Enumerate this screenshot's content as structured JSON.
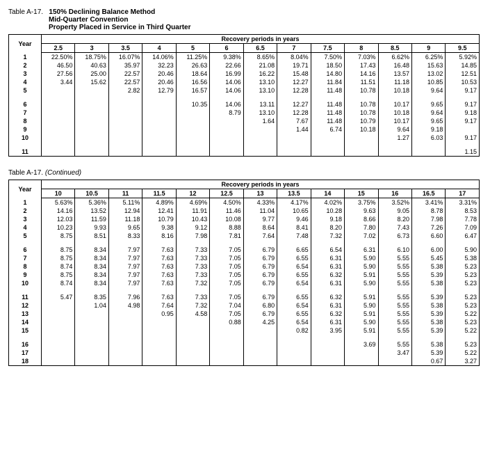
{
  "table1": {
    "label_left": "Table A-17.",
    "title_line1": "150% Declining Balance Method",
    "title_line2": "Mid-Quarter Convention",
    "title_line3": "Property Placed in Service in Third Quarter",
    "year_label": "Year",
    "recovery_title": "Recovery periods in years",
    "columns": [
      "2.5",
      "3",
      "3.5",
      "4",
      "5",
      "6",
      "6.5",
      "7",
      "7.5",
      "8",
      "8.5",
      "9",
      "9.5"
    ],
    "col_count": 13,
    "groups": [
      {
        "rows": [
          {
            "year": "1",
            "cells": [
              "22.50%",
              "18.75%",
              "16.07%",
              "14.06%",
              "11.25%",
              "9.38%",
              "8.65%",
              "8.04%",
              "7.50%",
              "7.03%",
              "6.62%",
              "6.25%",
              "5.92%"
            ]
          },
          {
            "year": "2",
            "cells": [
              "46.50",
              "40.63",
              "35.97",
              "32.23",
              "26.63",
              "22.66",
              "21.08",
              "19.71",
              "18.50",
              "17.43",
              "16.48",
              "15.63",
              "14.85"
            ]
          },
          {
            "year": "3",
            "cells": [
              "27.56",
              "25.00",
              "22.57",
              "20.46",
              "18.64",
              "16.99",
              "16.22",
              "15.48",
              "14.80",
              "14.16",
              "13.57",
              "13.02",
              "12.51"
            ]
          },
          {
            "year": "4",
            "cells": [
              "3.44",
              "15.62",
              "22.57",
              "20.46",
              "16.56",
              "14.06",
              "13.10",
              "12.27",
              "11.84",
              "11.51",
              "11.18",
              "10.85",
              "10.53"
            ]
          },
          {
            "year": "5",
            "cells": [
              "",
              "",
              "2.82",
              "12.79",
              "16.57",
              "14.06",
              "13.10",
              "12.28",
              "11.48",
              "10.78",
              "10.18",
              "9.64",
              "9.17"
            ]
          }
        ]
      },
      {
        "rows": [
          {
            "year": "6",
            "cells": [
              "",
              "",
              "",
              "",
              "10.35",
              "14.06",
              "13.11",
              "12.27",
              "11.48",
              "10.78",
              "10.17",
              "9.65",
              "9.17"
            ]
          },
          {
            "year": "7",
            "cells": [
              "",
              "",
              "",
              "",
              "",
              "8.79",
              "13.10",
              "12.28",
              "11.48",
              "10.78",
              "10.18",
              "9.64",
              "9.18"
            ]
          },
          {
            "year": "8",
            "cells": [
              "",
              "",
              "",
              "",
              "",
              "",
              "1.64",
              "7.67",
              "11.48",
              "10.79",
              "10.17",
              "9.65",
              "9.17"
            ]
          },
          {
            "year": "9",
            "cells": [
              "",
              "",
              "",
              "",
              "",
              "",
              "",
              "1.44",
              "6.74",
              "10.18",
              "9.64",
              "9.18",
              ""
            ]
          },
          {
            "year": "10",
            "cells": [
              "",
              "",
              "",
              "",
              "",
              "",
              "",
              "",
              "",
              "",
              "1.27",
              "6.03",
              "9.17"
            ]
          }
        ]
      },
      {
        "rows": [
          {
            "year": "11",
            "cells": [
              "",
              "",
              "",
              "",
              "",
              "",
              "",
              "",
              "",
              "",
              "",
              "",
              "1.15"
            ]
          }
        ]
      }
    ]
  },
  "table2": {
    "label_left": "Table A-17.",
    "label_right": "(Continued)",
    "year_label": "Year",
    "recovery_title": "Recovery periods in years",
    "columns": [
      "10",
      "10.5",
      "11",
      "11.5",
      "12",
      "12.5",
      "13",
      "13.5",
      "14",
      "15",
      "16",
      "16.5",
      "17"
    ],
    "col_count": 13,
    "groups": [
      {
        "rows": [
          {
            "year": "1",
            "cells": [
              "5.63%",
              "5.36%",
              "5.11%",
              "4.89%",
              "4.69%",
              "4.50%",
              "4.33%",
              "4.17%",
              "4.02%",
              "3.75%",
              "3.52%",
              "3.41%",
              "3.31%"
            ]
          },
          {
            "year": "2",
            "cells": [
              "14.16",
              "13.52",
              "12.94",
              "12.41",
              "11.91",
              "11.46",
              "11.04",
              "10.65",
              "10.28",
              "9.63",
              "9.05",
              "8.78",
              "8.53"
            ]
          },
          {
            "year": "3",
            "cells": [
              "12.03",
              "11.59",
              "11.18",
              "10.79",
              "10.43",
              "10.08",
              "9.77",
              "9.46",
              "9.18",
              "8.66",
              "8.20",
              "7.98",
              "7.78"
            ]
          },
          {
            "year": "4",
            "cells": [
              "10.23",
              "9.93",
              "9.65",
              "9.38",
              "9.12",
              "8.88",
              "8.64",
              "8.41",
              "8.20",
              "7.80",
              "7.43",
              "7.26",
              "7.09"
            ]
          },
          {
            "year": "5",
            "cells": [
              "8.75",
              "8.51",
              "8.33",
              "8.16",
              "7.98",
              "7.81",
              "7.64",
              "7.48",
              "7.32",
              "7.02",
              "6.73",
              "6.60",
              "6.47"
            ]
          }
        ]
      },
      {
        "rows": [
          {
            "year": "6",
            "cells": [
              "8.75",
              "8.34",
              "7.97",
              "7.63",
              "7.33",
              "7.05",
              "6.79",
              "6.65",
              "6.54",
              "6.31",
              "6.10",
              "6.00",
              "5.90"
            ]
          },
          {
            "year": "7",
            "cells": [
              "8.75",
              "8.34",
              "7.97",
              "7.63",
              "7.33",
              "7.05",
              "6.79",
              "6.55",
              "6.31",
              "5.90",
              "5.55",
              "5.45",
              "5.38"
            ]
          },
          {
            "year": "8",
            "cells": [
              "8.74",
              "8.34",
              "7.97",
              "7.63",
              "7.33",
              "7.05",
              "6.79",
              "6.54",
              "6.31",
              "5.90",
              "5.55",
              "5.38",
              "5.23"
            ]
          },
          {
            "year": "9",
            "cells": [
              "8.75",
              "8.34",
              "7.97",
              "7.63",
              "7.33",
              "7.05",
              "6.79",
              "6.55",
              "6.32",
              "5.91",
              "5.55",
              "5.39",
              "5.23"
            ]
          },
          {
            "year": "10",
            "cells": [
              "8.74",
              "8.34",
              "7.97",
              "7.63",
              "7.32",
              "7.05",
              "6.79",
              "6.54",
              "6.31",
              "5.90",
              "5.55",
              "5.38",
              "5.23"
            ]
          }
        ]
      },
      {
        "rows": [
          {
            "year": "11",
            "cells": [
              "5.47",
              "8.35",
              "7.96",
              "7.63",
              "7.33",
              "7.05",
              "6.79",
              "6.55",
              "6.32",
              "5.91",
              "5.55",
              "5.39",
              "5.23"
            ]
          },
          {
            "year": "12",
            "cells": [
              "",
              "1.04",
              "4.98",
              "7.64",
              "7.32",
              "7.04",
              "6.80",
              "6.54",
              "6.31",
              "5.90",
              "5.55",
              "5.38",
              "5.23"
            ]
          },
          {
            "year": "13",
            "cells": [
              "",
              "",
              "",
              "0.95",
              "4.58",
              "7.05",
              "6.79",
              "6.55",
              "6.32",
              "5.91",
              "5.55",
              "5.39",
              "5.22"
            ]
          },
          {
            "year": "14",
            "cells": [
              "",
              "",
              "",
              "",
              "",
              "0.88",
              "4.25",
              "6.54",
              "6.31",
              "5.90",
              "5.55",
              "5.38",
              "5.23"
            ]
          },
          {
            "year": "15",
            "cells": [
              "",
              "",
              "",
              "",
              "",
              "",
              "",
              "0.82",
              "3.95",
              "5.91",
              "5.55",
              "5.39",
              "5.22"
            ]
          }
        ]
      },
      {
        "rows": [
          {
            "year": "16",
            "cells": [
              "",
              "",
              "",
              "",
              "",
              "",
              "",
              "",
              "",
              "3.69",
              "5.55",
              "5.38",
              "5.23"
            ]
          },
          {
            "year": "17",
            "cells": [
              "",
              "",
              "",
              "",
              "",
              "",
              "",
              "",
              "",
              "",
              "3.47",
              "5.39",
              "5.22"
            ]
          },
          {
            "year": "18",
            "cells": [
              "",
              "",
              "",
              "",
              "",
              "",
              "",
              "",
              "",
              "",
              "",
              "0.67",
              "3.27"
            ]
          }
        ]
      }
    ]
  }
}
